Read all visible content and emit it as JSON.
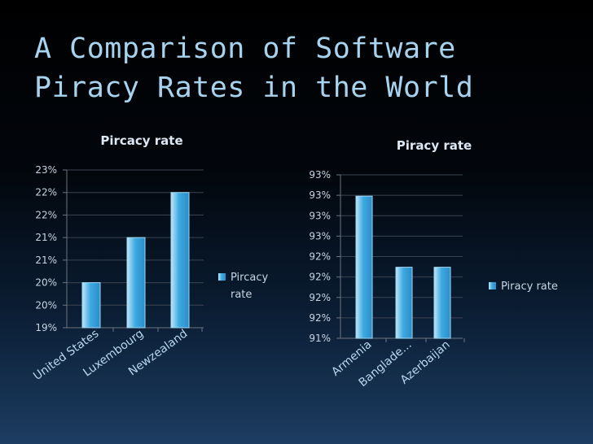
{
  "slide": {
    "title_line1": "A Comparison of Software",
    "title_line2": "Piracy Rates in the World"
  },
  "colors": {
    "title": "#a8d3ee",
    "bar_light": "#bfe6fa",
    "bar_mid": "#3ea9e0",
    "bar_dark": "#2a8cc8"
  },
  "chart_data": [
    {
      "type": "bar",
      "title": "Pircacy rate",
      "categories": [
        "United States",
        "Luxembourg",
        "Newzealand"
      ],
      "series": [
        {
          "name": "Pircacy rate",
          "values": [
            20,
            21,
            22
          ]
        }
      ],
      "ylim": [
        19,
        22.5
      ],
      "ytick_labels": [
        "19%",
        "20%",
        "20%",
        "21%",
        "21%",
        "22%",
        "22%",
        "23%"
      ],
      "legend": "right",
      "grid": true
    },
    {
      "type": "bar",
      "title": "Piracy rate",
      "categories": [
        "Armenia",
        "Bangladesh",
        "Azerbaijan"
      ],
      "category_labels": [
        "Armenia",
        "Banglade...",
        "Azerbaijan"
      ],
      "series": [
        {
          "name": "Piracy rate",
          "values": [
            93,
            92,
            92
          ]
        }
      ],
      "ylim": [
        91,
        93.3
      ],
      "ytick_labels": [
        "91%",
        "92%",
        "92%",
        "92%",
        "92%",
        "93%",
        "93%",
        "93%",
        "93%"
      ],
      "legend": "right",
      "grid": true
    }
  ]
}
